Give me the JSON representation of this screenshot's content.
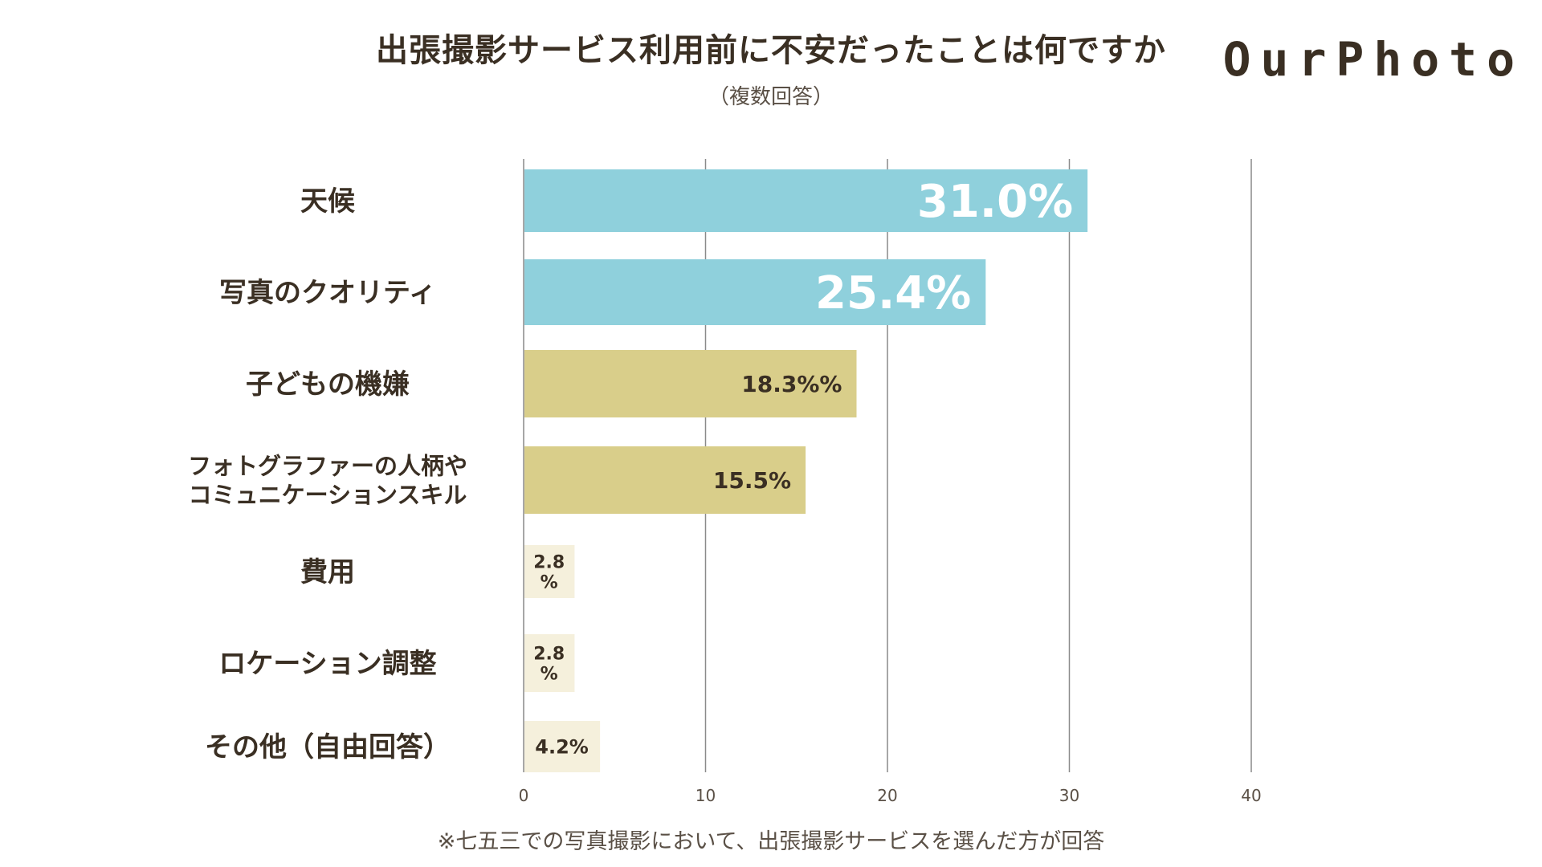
{
  "header": {
    "title": "出張撮影サービス利用前に不安だったことは何ですか",
    "subtitle": "（複数回答）",
    "logo": "OurPhoto"
  },
  "footnote": "※七五三での写真撮影において、出張撮影サービスを選んだ方が回答",
  "chart_data": {
    "type": "bar",
    "orientation": "horizontal",
    "title": "出張撮影サービス利用前に不安だったことは何ですか",
    "subtitle": "（複数回答）",
    "xlim": [
      0,
      40
    ],
    "xticks": [
      0,
      10,
      20,
      30,
      40
    ],
    "xtick_labels": [
      "0",
      "10",
      "20",
      "30",
      "40"
    ],
    "grid": true,
    "categories": [
      [
        "天候"
      ],
      [
        "写真のクオリティ"
      ],
      [
        "子どもの機嫌"
      ],
      [
        "フォトグラファーの人柄や",
        "コミュニケーションスキル"
      ],
      [
        "費用"
      ],
      [
        "ロケーション調整"
      ],
      [
        "その他（自由回答）"
      ]
    ],
    "values": [
      31.0,
      25.4,
      18.3,
      15.5,
      2.8,
      2.8,
      4.2
    ],
    "data_labels": [
      [
        "31.0%"
      ],
      [
        "25.4%"
      ],
      [
        "18.3%%"
      ],
      [
        "15.5%"
      ],
      [
        "2.8",
        "%"
      ],
      [
        "2.8",
        "%"
      ],
      [
        "4.2%"
      ]
    ],
    "colors": [
      "#8fd0dc",
      "#8fd0dc",
      "#d9ce8a",
      "#d9ce8a",
      "#f5f0dc",
      "#f5f0dc",
      "#f5f0dc"
    ],
    "label_colors": [
      "#ffffff",
      "#ffffff",
      "#3a2f23",
      "#3a2f23",
      "#3a2f23",
      "#3a2f23",
      "#3a2f23"
    ]
  }
}
